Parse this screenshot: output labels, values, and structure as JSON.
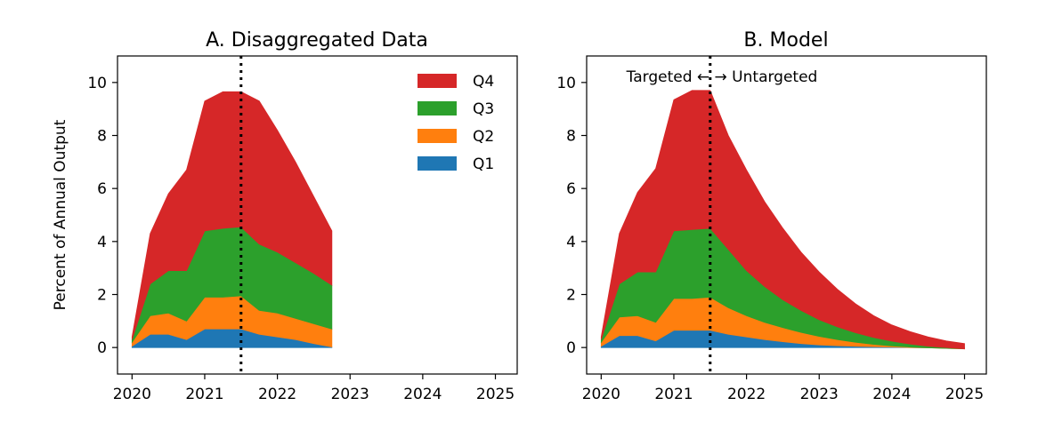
{
  "chart_data": [
    {
      "type": "area",
      "title": "A. Disaggregated Data",
      "ylabel": "Percent of Annual Output",
      "xlabel": "",
      "xlim": [
        2019.8,
        2025.3
      ],
      "ylim": [
        -1,
        11
      ],
      "xticks": [
        "2020",
        "2021",
        "2022",
        "2023",
        "2024",
        "2025"
      ],
      "yticks": [
        "0",
        "2",
        "4",
        "6",
        "8",
        "10"
      ],
      "vline_x": 2021.5,
      "legend": "upper right",
      "grid": false,
      "x": [
        2020.0,
        2020.25,
        2020.5,
        2020.75,
        2021.0,
        2021.25,
        2021.5,
        2021.75,
        2022.0,
        2022.25,
        2022.5,
        2022.75
      ],
      "series": [
        {
          "name": "Q1",
          "color": "#1f77b4",
          "cumulative": [
            0.05,
            0.5,
            0.5,
            0.3,
            0.7,
            0.7,
            0.7,
            0.5,
            0.4,
            0.3,
            0.15,
            0.02
          ]
        },
        {
          "name": "Q2",
          "color": "#ff7f0e",
          "cumulative": [
            0.2,
            1.2,
            1.3,
            1.0,
            1.9,
            1.9,
            1.95,
            1.4,
            1.3,
            1.1,
            0.9,
            0.7
          ]
        },
        {
          "name": "Q3",
          "color": "#2ca02c",
          "cumulative": [
            0.3,
            2.4,
            2.9,
            2.9,
            4.4,
            4.5,
            4.55,
            3.9,
            3.6,
            3.2,
            2.8,
            2.35
          ]
        },
        {
          "name": "Q4",
          "color": "#d62728",
          "cumulative": [
            0.4,
            4.3,
            5.8,
            6.7,
            9.3,
            9.65,
            9.65,
            9.3,
            8.2,
            7.0,
            5.7,
            4.4
          ]
        }
      ]
    },
    {
      "type": "area",
      "title": "B. Model",
      "xlabel": "",
      "ylabel": "",
      "xlim": [
        2019.8,
        2025.3
      ],
      "ylim": [
        -1,
        11
      ],
      "xticks": [
        "2020",
        "2021",
        "2022",
        "2023",
        "2024",
        "2025"
      ],
      "yticks": [
        "0",
        "2",
        "4",
        "6",
        "8",
        "10"
      ],
      "vline_x": 2021.5,
      "annotation": "Targeted ←  → Untargeted",
      "grid": false,
      "x": [
        2020.0,
        2020.25,
        2020.5,
        2020.75,
        2021.0,
        2021.25,
        2021.5,
        2021.75,
        2022.0,
        2022.25,
        2022.5,
        2022.75,
        2023.0,
        2023.25,
        2023.5,
        2023.75,
        2024.0,
        2024.25,
        2024.5,
        2024.75,
        2025.0
      ],
      "series": [
        {
          "name": "Q1",
          "color": "#1f77b4",
          "cumulative": [
            0.05,
            0.45,
            0.45,
            0.25,
            0.65,
            0.65,
            0.65,
            0.5,
            0.4,
            0.3,
            0.22,
            0.15,
            0.1,
            0.07,
            0.05,
            0.03,
            0.02,
            0.0,
            -0.01,
            -0.02,
            -0.03
          ]
        },
        {
          "name": "Q2",
          "color": "#ff7f0e",
          "cumulative": [
            0.2,
            1.15,
            1.2,
            0.95,
            1.85,
            1.85,
            1.9,
            1.5,
            1.2,
            0.95,
            0.75,
            0.57,
            0.42,
            0.3,
            0.2,
            0.12,
            0.06,
            0.02,
            -0.01,
            -0.03,
            -0.05
          ]
        },
        {
          "name": "Q3",
          "color": "#2ca02c",
          "cumulative": [
            0.3,
            2.4,
            2.85,
            2.85,
            4.4,
            4.45,
            4.5,
            3.7,
            2.9,
            2.3,
            1.8,
            1.4,
            1.05,
            0.78,
            0.56,
            0.38,
            0.24,
            0.13,
            0.05,
            0.0,
            -0.05
          ]
        },
        {
          "name": "Q4",
          "color": "#d62728",
          "cumulative": [
            0.4,
            4.3,
            5.85,
            6.75,
            9.35,
            9.7,
            9.7,
            8.0,
            6.7,
            5.5,
            4.5,
            3.6,
            2.85,
            2.2,
            1.65,
            1.2,
            0.85,
            0.6,
            0.4,
            0.25,
            0.15
          ]
        }
      ]
    }
  ]
}
